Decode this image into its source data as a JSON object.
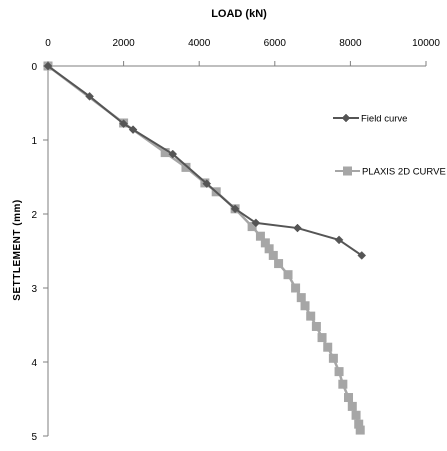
{
  "chart_data": {
    "type": "line",
    "title": "LOAD (kN)",
    "xlabel": "",
    "ylabel": "SETTLEMENT (mm)",
    "x_ticks": [
      "0",
      "2000",
      "4000",
      "6000",
      "8000",
      "10000"
    ],
    "y_ticks": [
      "0",
      "1",
      "2",
      "3",
      "4",
      "5"
    ],
    "xlim": [
      0,
      10000
    ],
    "ylim": [
      0,
      5
    ],
    "x_axis_position": "top",
    "y_inverted": true,
    "grid": false,
    "legend_position": "right",
    "series": [
      {
        "name": "Field curve",
        "color": "#555555",
        "marker": "diamond",
        "points": [
          [
            0,
            0
          ],
          [
            1100,
            0.41
          ],
          [
            2000,
            0.78
          ],
          [
            2250,
            0.86
          ],
          [
            3300,
            1.19
          ],
          [
            4200,
            1.59
          ],
          [
            4950,
            1.93
          ],
          [
            5500,
            2.12
          ],
          [
            6600,
            2.19
          ],
          [
            7700,
            2.35
          ],
          [
            8300,
            2.56
          ]
        ]
      },
      {
        "name": "PLAXIS 2D CURVE",
        "color": "#a6a6a6",
        "marker": "square",
        "points": [
          [
            0,
            0
          ],
          [
            2000,
            0.77
          ],
          [
            3100,
            1.17
          ],
          [
            3650,
            1.37
          ],
          [
            4150,
            1.58
          ],
          [
            4450,
            1.7
          ],
          [
            4950,
            1.93
          ],
          [
            5400,
            2.17
          ],
          [
            5620,
            2.3
          ],
          [
            5750,
            2.39
          ],
          [
            5850,
            2.47
          ],
          [
            5960,
            2.56
          ],
          [
            6100,
            2.67
          ],
          [
            6350,
            2.82
          ],
          [
            6550,
            3.0
          ],
          [
            6700,
            3.13
          ],
          [
            6800,
            3.24
          ],
          [
            6950,
            3.38
          ],
          [
            7100,
            3.52
          ],
          [
            7250,
            3.67
          ],
          [
            7400,
            3.8
          ],
          [
            7550,
            3.95
          ],
          [
            7700,
            4.13
          ],
          [
            7800,
            4.3
          ],
          [
            7950,
            4.48
          ],
          [
            8050,
            4.6
          ],
          [
            8150,
            4.72
          ],
          [
            8220,
            4.84
          ],
          [
            8260,
            4.92
          ]
        ]
      }
    ]
  }
}
